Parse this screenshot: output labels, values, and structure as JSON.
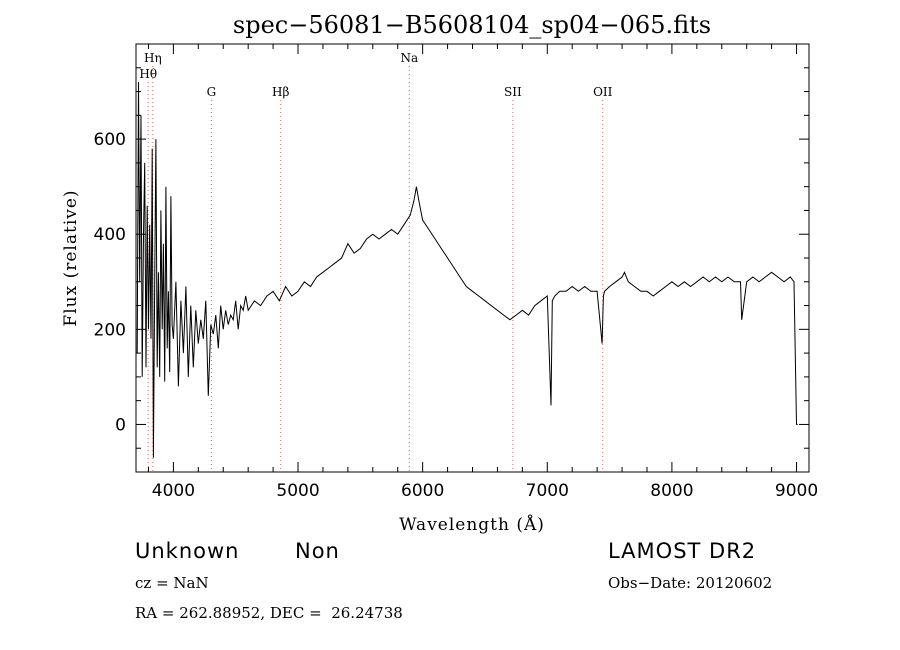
{
  "chart_data": {
    "type": "line",
    "title": "spec−56081−B5608104_sp04−065.fits",
    "xlabel": "Wavelength (Å)",
    "ylabel": "Flux (relative)",
    "xlim": [
      3700,
      9100
    ],
    "ylim": [
      -100,
      800
    ],
    "x_ticks": [
      4000,
      5000,
      6000,
      7000,
      8000,
      9000
    ],
    "y_ticks": [
      0,
      200,
      400,
      600
    ],
    "grid": false,
    "series": [
      {
        "x": [
          3710,
          3720,
          3730,
          3740,
          3750,
          3760,
          3770,
          3780,
          3790,
          3800,
          3810,
          3820,
          3830,
          3840,
          3850,
          3860,
          3870,
          3880,
          3890,
          3900,
          3910,
          3920,
          3930,
          3940,
          3950,
          3960,
          3970,
          3980,
          3990,
          4000,
          4020,
          4040,
          4060,
          4080,
          4100,
          4120,
          4140,
          4160,
          4180,
          4200,
          4220,
          4240,
          4260,
          4280,
          4300,
          4320,
          4340,
          4360,
          4380,
          4400,
          4420,
          4440,
          4460,
          4480,
          4500,
          4520,
          4540,
          4560,
          4580,
          4600,
          4650,
          4700,
          4750,
          4800,
          4850,
          4900,
          4950,
          5000,
          5050,
          5100,
          5150,
          5200,
          5250,
          5300,
          5350,
          5400,
          5450,
          5500,
          5550,
          5600,
          5650,
          5700,
          5750,
          5800,
          5850,
          5900,
          5930,
          5950,
          5970,
          6000,
          6050,
          6100,
          6150,
          6200,
          6250,
          6300,
          6350,
          6400,
          6450,
          6500,
          6550,
          6600,
          6650,
          6700,
          6750,
          6800,
          6850,
          6900,
          6950,
          7000,
          7030,
          7040,
          7060,
          7100,
          7150,
          7200,
          7250,
          7300,
          7350,
          7400,
          7440,
          7450,
          7460,
          7500,
          7550,
          7600,
          7620,
          7650,
          7700,
          7750,
          7800,
          7850,
          7900,
          7950,
          8000,
          8050,
          8100,
          8150,
          8200,
          8250,
          8300,
          8350,
          8400,
          8450,
          8500,
          8550,
          8560,
          8600,
          8650,
          8700,
          8750,
          8800,
          8850,
          8900,
          8950,
          8980,
          9000,
          9010
        ],
        "y": [
          150,
          720,
          300,
          650,
          100,
          400,
          550,
          120,
          460,
          200,
          420,
          180,
          580,
          -70,
          300,
          600,
          120,
          320,
          100,
          450,
          200,
          380,
          90,
          500,
          160,
          280,
          110,
          480,
          210,
          180,
          300,
          80,
          260,
          150,
          290,
          100,
          250,
          120,
          240,
          170,
          220,
          180,
          260,
          60,
          210,
          190,
          230,
          160,
          250,
          200,
          240,
          210,
          230,
          220,
          260,
          200,
          250,
          240,
          270,
          240,
          260,
          250,
          270,
          280,
          260,
          290,
          270,
          280,
          300,
          290,
          310,
          320,
          330,
          340,
          350,
          380,
          360,
          370,
          390,
          400,
          390,
          400,
          410,
          400,
          420,
          440,
          470,
          500,
          470,
          430,
          410,
          390,
          370,
          350,
          330,
          310,
          290,
          280,
          270,
          260,
          250,
          240,
          230,
          220,
          230,
          240,
          230,
          250,
          260,
          270,
          40,
          260,
          270,
          280,
          280,
          290,
          280,
          290,
          280,
          280,
          170,
          270,
          280,
          290,
          300,
          310,
          320,
          300,
          290,
          280,
          280,
          270,
          280,
          290,
          300,
          290,
          300,
          290,
          300,
          310,
          300,
          310,
          300,
          310,
          300,
          300,
          220,
          300,
          310,
          300,
          310,
          320,
          310,
          300,
          310,
          300,
          0,
          0
        ]
      }
    ],
    "lines": [
      {
        "label": "Hη",
        "x": 3835,
        "row": 1
      },
      {
        "label": "Hθ",
        "x": 3798,
        "row": 2
      },
      {
        "label": "G",
        "x": 4305,
        "row": 3
      },
      {
        "label": "Hβ",
        "x": 4861,
        "row": 3
      },
      {
        "label": "Na",
        "x": 5893,
        "row": 1
      },
      {
        "label": "SII",
        "x": 6724,
        "row": 3
      },
      {
        "label": "OII",
        "x": 7445,
        "row": 3
      }
    ]
  },
  "info": {
    "class": "Unknown",
    "subclass": "Non",
    "survey": "LAMOST DR2",
    "cz": "cz = NaN",
    "obs_date": "Obs−Date: 20120602",
    "radec": "RA = 262.88952, DEC =  26.24738"
  }
}
